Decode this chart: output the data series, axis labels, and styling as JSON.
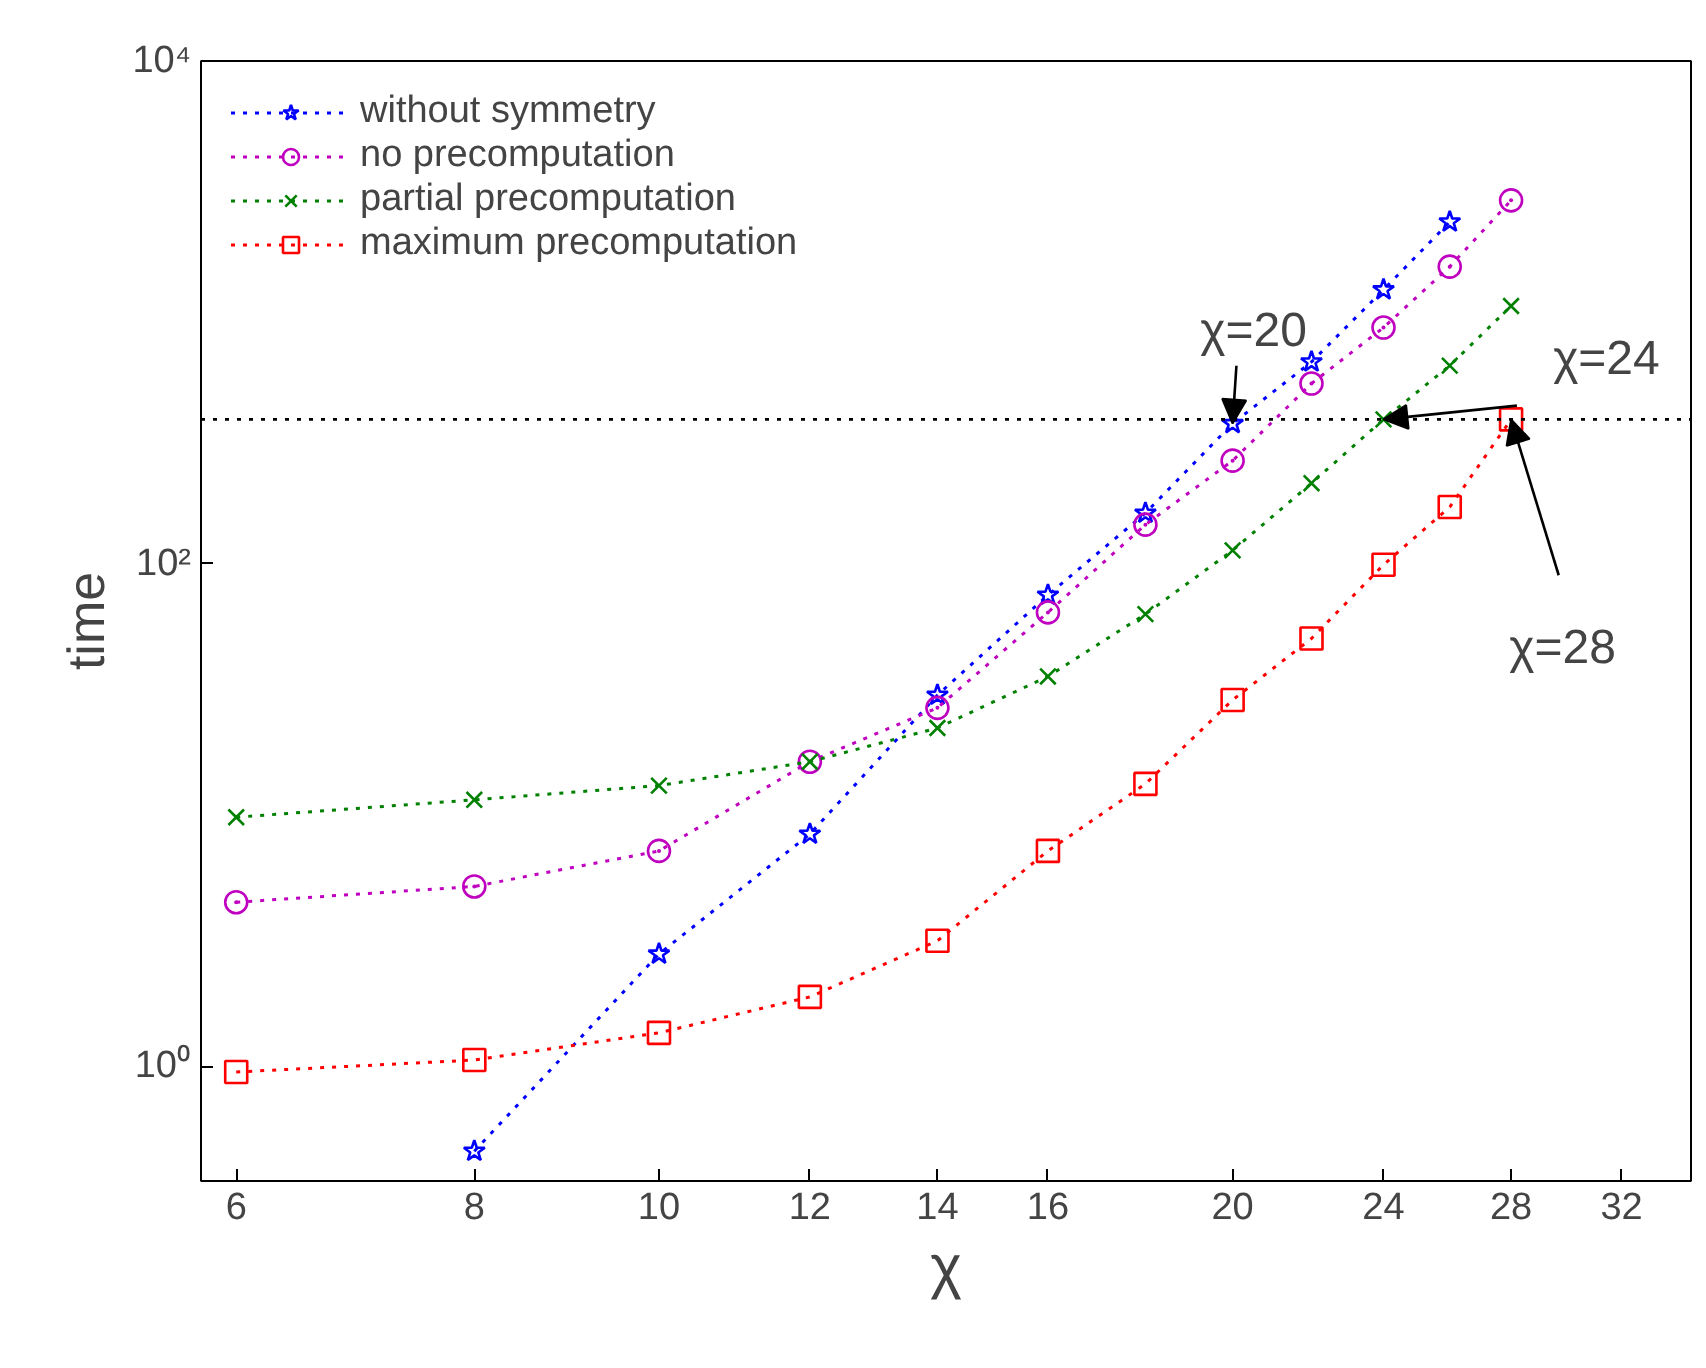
{
  "chart_data": {
    "type": "line",
    "xlabel": "χ",
    "ylabel": "time",
    "log": "xy",
    "xlim": [
      5.75,
      34.8
    ],
    "ylim": [
      0.35,
      10000
    ],
    "xticks": [
      6,
      8,
      10,
      12,
      14,
      16,
      20,
      24,
      28,
      32
    ],
    "yticks": [
      {
        "value": 1,
        "label": "10⁰"
      },
      {
        "value": 100,
        "label": "10²"
      },
      {
        "value": 10000,
        "label": "10⁴"
      }
    ],
    "grid": false,
    "legend": "top left",
    "line_style": "dotted",
    "series": [
      {
        "name": "without symmetry",
        "color": "#0000ff",
        "marker": "star",
        "x": [
          8,
          10,
          12,
          14,
          16,
          18,
          20,
          22,
          24,
          26
        ],
        "values": [
          0.46,
          2.8,
          8.4,
          30,
          75,
          159,
          361,
          635,
          1230,
          2290
        ]
      },
      {
        "name": "no precomputation",
        "color": "#bf00bf",
        "marker": "circle",
        "x": [
          6,
          8,
          10,
          12,
          14,
          16,
          18,
          20,
          22,
          24,
          26,
          28
        ],
        "values": [
          4.5,
          5.2,
          7.2,
          16.3,
          26.7,
          64,
          143,
          257,
          521,
          870,
          1520,
          2790
        ]
      },
      {
        "name": "partial precomputation",
        "color": "#008000",
        "marker": "cross",
        "x": [
          6,
          8,
          10,
          12,
          14,
          16,
          18,
          20,
          22,
          24,
          26,
          28
        ],
        "values": [
          9.8,
          11.5,
          13.1,
          16.3,
          22.2,
          35.6,
          63,
          113,
          209,
          375,
          614,
          1060
        ]
      },
      {
        "name": "maximum precomputation",
        "color": "#ff0000",
        "marker": "square",
        "x": [
          6,
          8,
          10,
          12,
          14,
          16,
          18,
          20,
          22,
          24,
          26,
          28
        ],
        "values": [
          0.95,
          1.06,
          1.36,
          1.89,
          3.16,
          7.2,
          13.3,
          28.7,
          50.4,
          99,
          168,
          375
        ]
      }
    ],
    "ref_lines": [
      {
        "axis": "y",
        "value": 375,
        "color": "#000000",
        "line_style": "dotted"
      }
    ],
    "annotations": [
      {
        "text": "χ=20",
        "x": 20,
        "y": 361
      },
      {
        "text": "χ=24",
        "x": 24,
        "y": 375
      },
      {
        "text": "χ=28",
        "x": 28,
        "y": 375
      }
    ]
  }
}
